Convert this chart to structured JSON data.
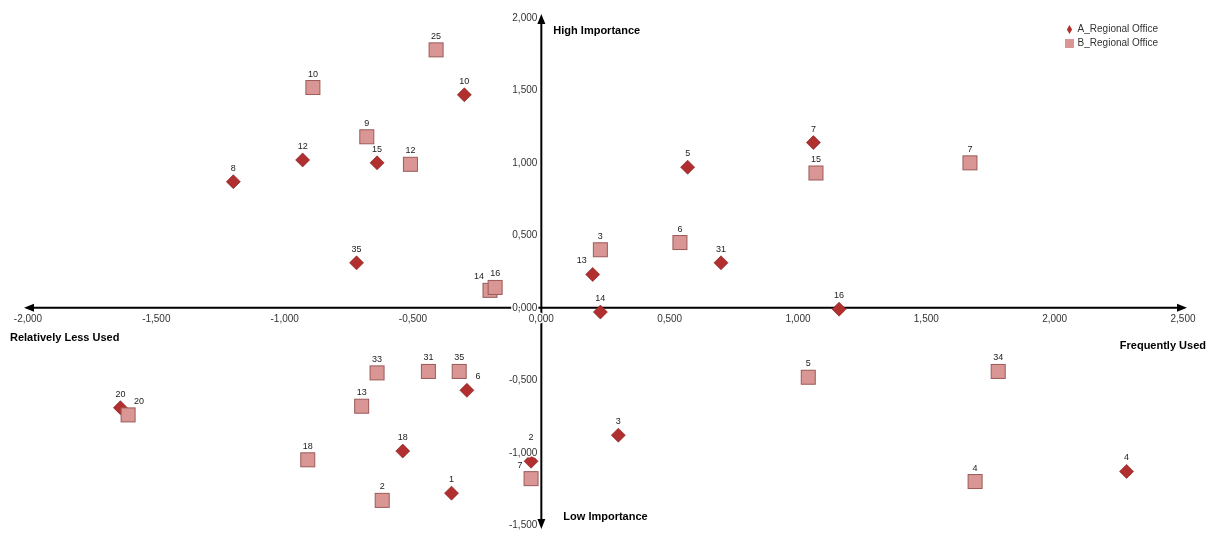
{
  "chart_data": {
    "type": "scatter",
    "annotations": [
      "High Importance",
      "Low Importance",
      "Relatively Less Used",
      "Frequently Used",
      {
        "text": "8",
        "x": -1.2,
        "y": 0.87
      },
      {
        "text": "12",
        "x": -0.93,
        "y": 1.02
      },
      {
        "text": "15",
        "x": -0.64,
        "y": 1.0
      },
      {
        "text": "10",
        "x": -0.3,
        "y": 1.47
      },
      {
        "text": "35",
        "x": -0.72,
        "y": 0.31
      },
      {
        "text": "13",
        "x": 0.2,
        "y": 0.23
      },
      {
        "text": "14",
        "x": 0.23,
        "y": -0.03
      },
      {
        "text": "5",
        "x": 0.57,
        "y": 0.97
      },
      {
        "text": "7",
        "x": 1.06,
        "y": 1.14
      },
      {
        "text": "31",
        "x": 0.7,
        "y": 0.31
      },
      {
        "text": "16",
        "x": 1.16,
        "y": -0.01
      },
      {
        "text": "20",
        "x": -1.64,
        "y": -0.69
      },
      {
        "text": "6",
        "x": -0.29,
        "y": -0.57
      },
      {
        "text": "18",
        "x": -0.54,
        "y": -0.99
      },
      {
        "text": "1",
        "x": -0.35,
        "y": -1.28
      },
      {
        "text": "2",
        "x": -0.04,
        "y": -1.06
      },
      {
        "text": "3",
        "x": 0.3,
        "y": -0.88
      },
      {
        "text": "4",
        "x": 2.28,
        "y": -1.13
      },
      {
        "text": "25",
        "x": -0.41,
        "y": 1.78
      },
      {
        "text": "10",
        "x": -0.89,
        "y": 1.52
      },
      {
        "text": "9",
        "x": -0.68,
        "y": 1.18
      },
      {
        "text": "12",
        "x": -0.51,
        "y": 0.99
      },
      {
        "text": "14",
        "x": -0.2,
        "y": 0.12
      },
      {
        "text": "16",
        "x": -0.18,
        "y": 0.14
      },
      {
        "text": "3",
        "x": 0.23,
        "y": 0.4
      },
      {
        "text": "6",
        "x": 0.54,
        "y": 0.45
      },
      {
        "text": "15",
        "x": 1.07,
        "y": 0.93
      },
      {
        "text": "7",
        "x": 1.67,
        "y": 1.0
      },
      {
        "text": "33",
        "x": -0.64,
        "y": -0.45
      },
      {
        "text": "31",
        "x": -0.44,
        "y": -0.44
      },
      {
        "text": "35",
        "x": -0.32,
        "y": -0.44
      },
      {
        "text": "13",
        "x": -0.7,
        "y": -0.68
      },
      {
        "text": "20",
        "x": -1.61,
        "y": -0.74
      },
      {
        "text": "18",
        "x": -0.91,
        "y": -1.05
      },
      {
        "text": "2",
        "x": -0.62,
        "y": -1.33
      },
      {
        "text": "7",
        "x": -0.04,
        "y": -1.18
      },
      {
        "text": "5",
        "x": 1.04,
        "y": -0.48
      },
      {
        "text": "34",
        "x": 1.78,
        "y": -0.44
      },
      {
        "text": "4",
        "x": 1.69,
        "y": -1.2
      }
    ],
    "xlim": [
      -2,
      2.5
    ],
    "xticks": [
      {
        "value": -2,
        "label": "-2,000"
      },
      {
        "value": -1.5,
        "label": "-1,500"
      },
      {
        "value": -1,
        "label": "-1,000"
      },
      {
        "value": -0.5,
        "label": "-0,500"
      },
      {
        "value": 0,
        "label": "0,000"
      },
      {
        "value": 0.5,
        "label": "0,500"
      },
      {
        "value": 1,
        "label": "1,000"
      },
      {
        "value": 1.5,
        "label": "1,500"
      },
      {
        "value": 2,
        "label": "2,000"
      },
      {
        "value": 2.5,
        "label": "2,500"
      }
    ],
    "ylim": [
      -1.5,
      2
    ],
    "yticks": [
      {
        "value": -1.5,
        "label": "-1,500"
      },
      {
        "value": -1,
        "label": "-1,000"
      },
      {
        "value": -0.5,
        "label": "-0,500"
      },
      {
        "value": 0,
        "label": "0,000"
      },
      {
        "value": 0.5,
        "label": "0,500"
      },
      {
        "value": 1,
        "label": "1,000"
      },
      {
        "value": 1.5,
        "label": "1,500"
      },
      {
        "value": 2,
        "label": "2,000"
      }
    ],
    "legend": "top right",
    "series": [
      {
        "name": "A_Regional Office",
        "color": "#b22f2f",
        "marker": "diamond",
        "x": [
          -1.2,
          -0.93,
          -0.64,
          -0.3,
          -0.72,
          0.2,
          0.23,
          0.57,
          1.06,
          0.7,
          1.16,
          -1.64,
          -0.29,
          -0.54,
          -0.35,
          -0.04,
          0.3,
          2.28
        ],
        "values": [
          0.87,
          1.02,
          1.0,
          1.47,
          0.31,
          0.23,
          -0.03,
          0.97,
          1.14,
          0.31,
          -0.01,
          -0.69,
          -0.57,
          -0.99,
          -1.28,
          -1.06,
          -0.88,
          -1.13
        ]
      },
      {
        "name": "B_Regional Office",
        "color": "#d99694",
        "marker": "square",
        "x": [
          -0.41,
          -0.89,
          -0.68,
          -0.51,
          -0.2,
          -0.18,
          0.23,
          0.54,
          1.07,
          1.67,
          -0.64,
          -0.44,
          -0.32,
          -0.7,
          -1.61,
          -0.91,
          -0.62,
          -0.04,
          1.04,
          1.78,
          1.69
        ],
        "values": [
          1.78,
          1.52,
          1.18,
          0.99,
          0.12,
          0.14,
          0.4,
          0.45,
          0.93,
          1.0,
          -0.45,
          -0.44,
          -0.44,
          -0.68,
          -0.74,
          -1.05,
          -1.33,
          -1.18,
          -0.48,
          -0.44,
          -1.2
        ]
      }
    ]
  }
}
